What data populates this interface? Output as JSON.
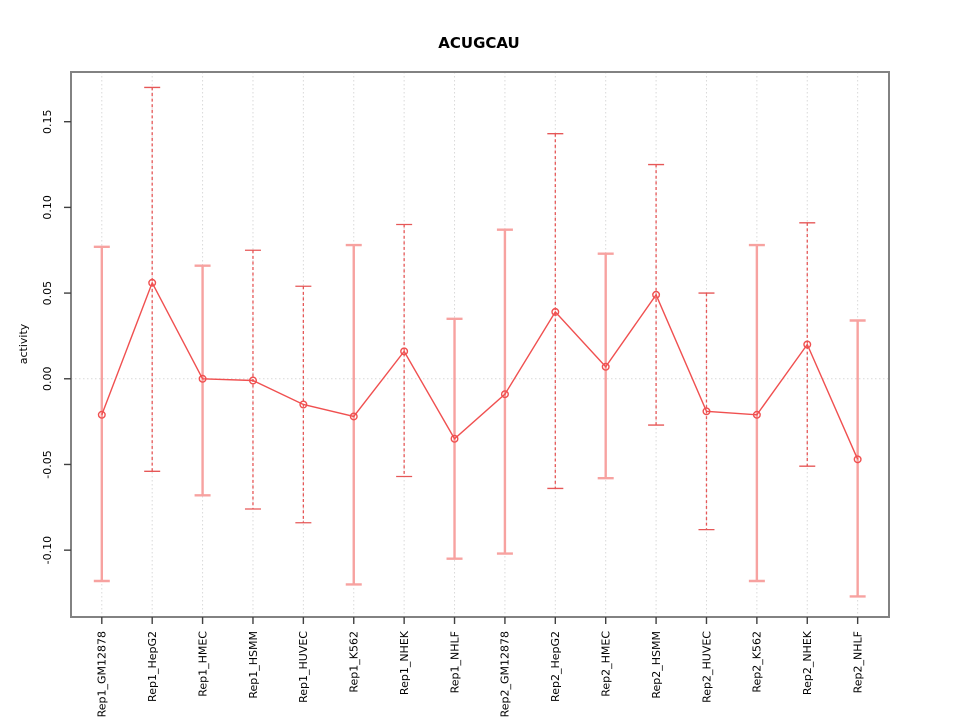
{
  "chart_data": {
    "type": "line",
    "title": "ACUGCAU",
    "xlabel": "",
    "ylabel": "activity",
    "legend_position": "none",
    "categories": [
      "Rep1_GM12878",
      "Rep1_HepG2",
      "Rep1_HMEC",
      "Rep1_HSMM",
      "Rep1_HUVEC",
      "Rep1_K562",
      "Rep1_NHEK",
      "Rep1_NHLF",
      "Rep2_GM12878",
      "Rep2_HepG2",
      "Rep2_HMEC",
      "Rep2_HSMM",
      "Rep2_HUVEC",
      "Rep2_K562",
      "Rep2_NHEK",
      "Rep2_NHLF"
    ],
    "series": [
      {
        "name": "activity_mean",
        "marker": "open-circle",
        "values": [
          -0.021,
          0.056,
          0.0,
          -0.001,
          -0.015,
          -0.022,
          0.016,
          -0.035,
          -0.009,
          0.039,
          0.007,
          0.049,
          -0.019,
          -0.021,
          0.02,
          -0.047
        ]
      },
      {
        "name": "errorbar_upper",
        "values": [
          0.077,
          0.17,
          0.066,
          0.075,
          0.054,
          0.078,
          0.09,
          0.035,
          0.087,
          0.143,
          0.073,
          0.125,
          0.05,
          0.078,
          0.091,
          0.034
        ]
      },
      {
        "name": "errorbar_lower",
        "values": [
          -0.118,
          -0.054,
          -0.068,
          -0.076,
          -0.084,
          -0.12,
          -0.057,
          -0.105,
          -0.102,
          -0.064,
          -0.058,
          -0.027,
          -0.088,
          -0.118,
          -0.051,
          -0.127
        ]
      }
    ],
    "errorbar_styles": [
      "solid",
      "dashed",
      "solid",
      "dashed",
      "dashed",
      "solid",
      "dashed",
      "solid",
      "solid",
      "dashed",
      "solid",
      "dashed",
      "dashed",
      "solid",
      "dashed",
      "solid"
    ],
    "yticks_labels": [
      "0.15",
      "0.10",
      "0.05",
      "0.00",
      "-0.05",
      "-0.10"
    ],
    "yticks_values": [
      0.15,
      0.1,
      0.05,
      0.0,
      -0.05,
      -0.1
    ],
    "ylim": [
      -0.139,
      0.179
    ],
    "grid": {
      "vertical_dotted_per_category": true,
      "horizontal_dotted_at_zero": true
    },
    "colors": {
      "point_line": "#f05050",
      "errorbar_solid": "#f7a2a0",
      "errorbar_dashed": "#e65757",
      "gridline": "#d9d9d9",
      "box": "#828282",
      "tick": "#404040",
      "text": "#000000"
    }
  }
}
